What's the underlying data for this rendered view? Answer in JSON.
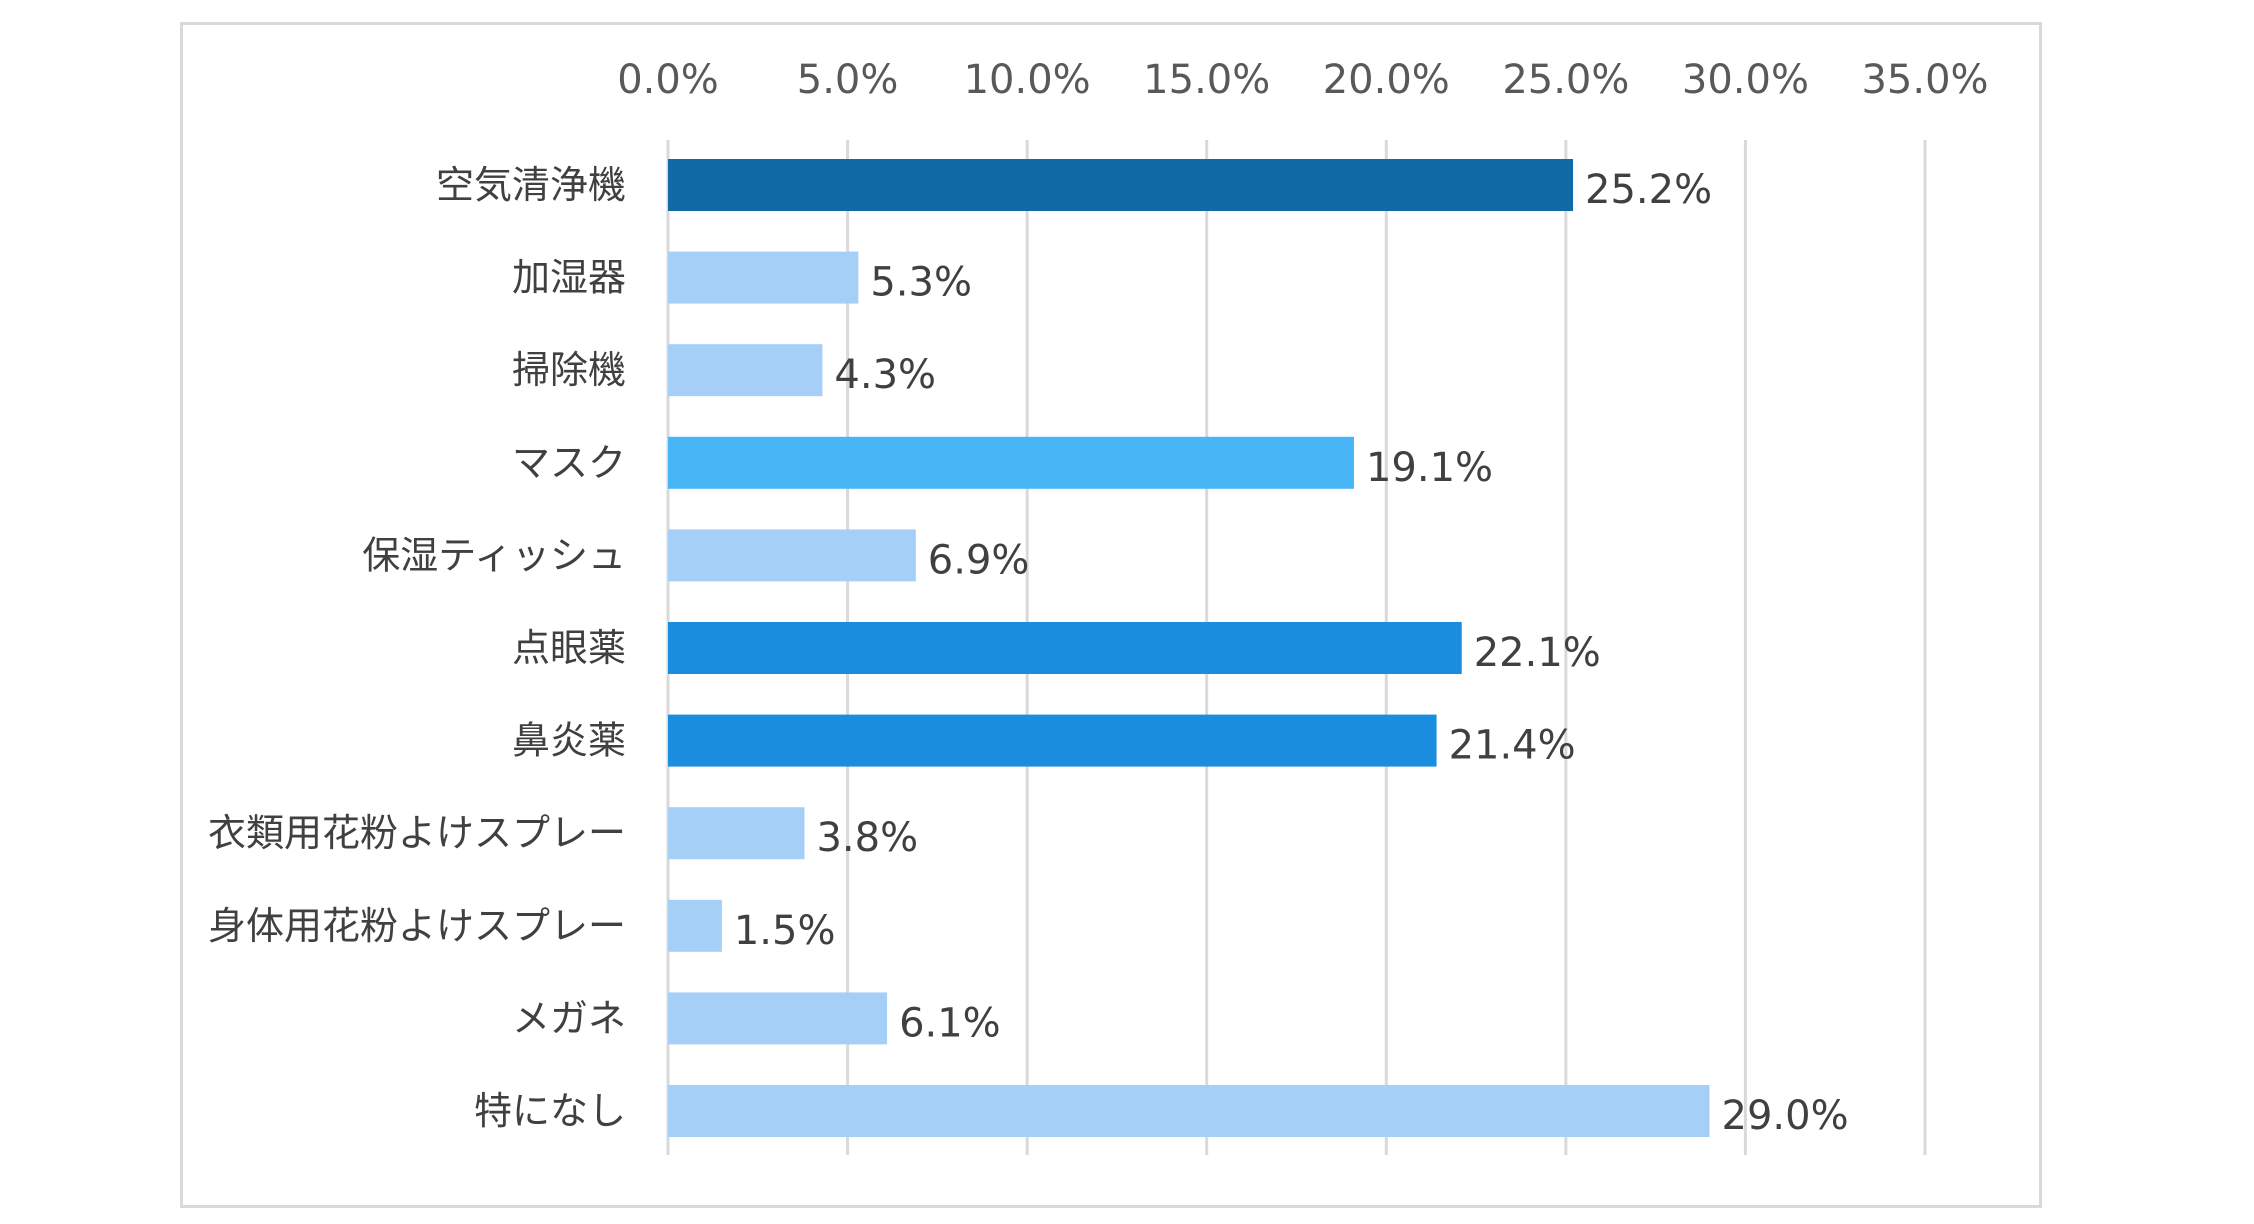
{
  "chart_data": {
    "type": "bar",
    "orientation": "horizontal",
    "categories": [
      "空気清浄機",
      "加湿器",
      "掃除機",
      "マスク",
      "保湿ティッシュ",
      "点眼薬",
      "鼻炎薬",
      "衣類用花粉よけスプレー",
      "身体用花粉よけスプレー",
      "メガネ",
      "特になし"
    ],
    "values": [
      25.2,
      5.3,
      4.3,
      19.1,
      6.9,
      22.1,
      21.4,
      3.8,
      1.5,
      6.1,
      29.0
    ],
    "data_labels": [
      "25.2%",
      "5.3%",
      "4.3%",
      "19.1%",
      "6.9%",
      "22.1%",
      "21.4%",
      "3.8%",
      "1.5%",
      "6.1%",
      "29.0%"
    ],
    "bar_colors": [
      "#1169a6",
      "#a6cff8",
      "#a6cff8",
      "#48b5f7",
      "#a6cff8",
      "#1a8ddf",
      "#1a8ddf",
      "#a6cff8",
      "#a6cff8",
      "#a6cff8",
      "#a6cff8"
    ],
    "xlim": [
      0,
      35
    ],
    "x_ticks": [
      0,
      5,
      10,
      15,
      20,
      25,
      30,
      35
    ],
    "x_tick_labels": [
      "0.0%",
      "5.0%",
      "10.0%",
      "15.0%",
      "20.0%",
      "25.0%",
      "30.0%",
      "35.0%"
    ],
    "x_axis_position": "top",
    "grid": true,
    "title": "",
    "xlabel": "",
    "ylabel": ""
  }
}
